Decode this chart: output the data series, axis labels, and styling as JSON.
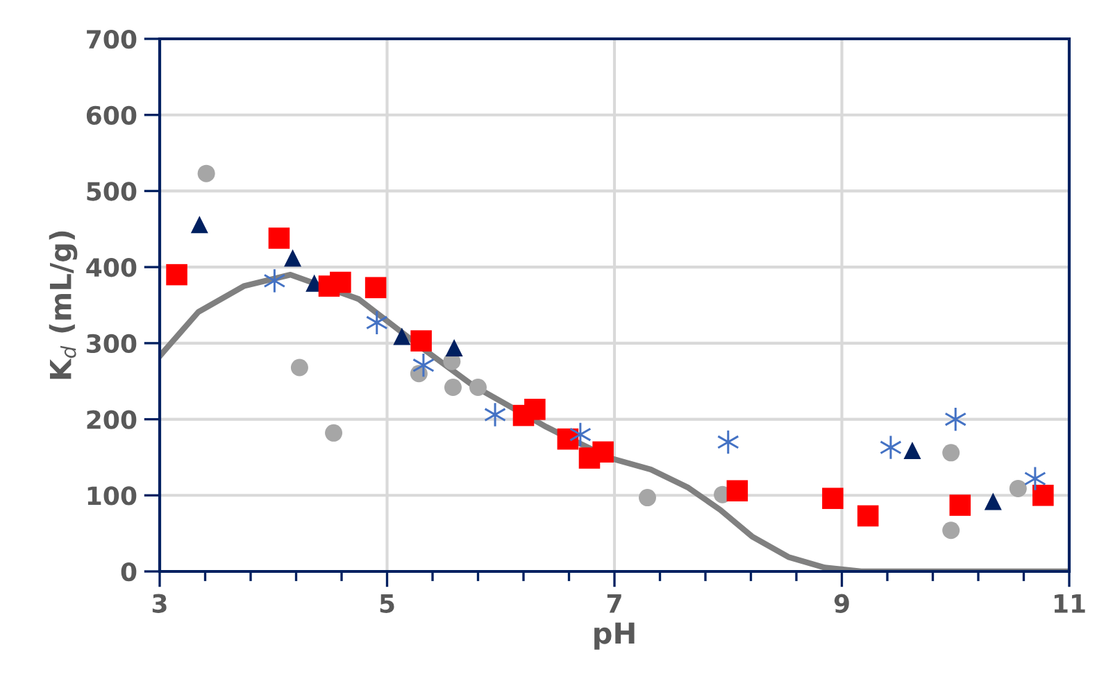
{
  "chart_data": {
    "type": "scatter",
    "xlabel": "pH",
    "ylabel": "K$_{d}$ (mL/g)",
    "xlim": [
      3,
      11
    ],
    "ylim": [
      0,
      700
    ],
    "xticks": [
      3,
      {
        "value": 3.4,
        "label": null
      },
      {
        "value": 3.8,
        "label": null
      },
      {
        "value": 4.2,
        "label": null
      },
      {
        "value": 4.6,
        "label": null
      },
      5,
      {
        "value": 5.4,
        "label": null
      },
      {
        "value": 5.8,
        "label": null
      },
      {
        "value": 6.2,
        "label": null
      },
      {
        "value": 6.6,
        "label": null
      },
      7,
      {
        "value": 7.4,
        "label": null
      },
      {
        "value": 7.8,
        "label": null
      },
      {
        "value": 8.2,
        "label": null
      },
      {
        "value": 8.6,
        "label": null
      },
      9,
      {
        "value": 9.4,
        "label": null
      },
      {
        "value": 9.8,
        "label": null
      },
      {
        "value": 10.2,
        "label": null
      },
      {
        "value": 10.6,
        "label": null
      },
      11
    ],
    "yticks": [
      0,
      100,
      200,
      300,
      400,
      500,
      600,
      700
    ],
    "grid": true,
    "legend": false,
    "series": [
      {
        "type": "line",
        "color": "#808080",
        "marker": "none",
        "line_style": "solid",
        "x": [
          3,
          3.34,
          3.74,
          4.15,
          4.75,
          4.95,
          5.35,
          5.76,
          6.4,
          6.56,
          6.96,
          7.32,
          7.65,
          7.93,
          8.21,
          8.53,
          8.85,
          9.17,
          11
        ],
        "values": [
          283,
          341,
          375,
          390,
          358,
          335,
          289,
          244,
          190,
          178,
          149,
          134,
          110,
          81,
          46,
          19,
          5,
          0,
          0
        ]
      },
      {
        "color": "#a6a6a6",
        "marker": "circle",
        "x": [
          3.41,
          4.23,
          4.53,
          5.28,
          5.57,
          5.58,
          5.8,
          7.29,
          7.95,
          9.96,
          9.96,
          10.55
        ],
        "values": [
          523,
          268,
          182,
          260,
          276,
          242,
          242,
          97,
          101,
          156,
          54,
          109
        ]
      },
      {
        "color": "#002060",
        "marker": "triangle",
        "x": [
          3.35,
          4.17,
          4.36,
          5.13,
          5.59,
          9.62,
          10.33
        ],
        "values": [
          456,
          412,
          379,
          309,
          294,
          159,
          92
        ]
      },
      {
        "color": "#ff0000",
        "marker": "square",
        "x": [
          3.15,
          4.05,
          4.49,
          4.59,
          4.9,
          5.3,
          6.2,
          6.3,
          6.59,
          6.78,
          6.9,
          8.08,
          8.92,
          9.23,
          10.04,
          10.77
        ],
        "values": [
          390,
          438,
          375,
          380,
          373,
          303,
          205,
          213,
          174,
          149,
          157,
          106,
          96,
          73,
          87,
          100
        ]
      },
      {
        "color": "#4472c4",
        "marker": "cross",
        "x": [
          4.01,
          4.91,
          5.32,
          5.95,
          6.7,
          8.0,
          9.43,
          10.0,
          10.7
        ],
        "values": [
          382,
          327,
          271,
          206,
          180,
          170,
          163,
          200,
          122
        ]
      }
    ]
  }
}
